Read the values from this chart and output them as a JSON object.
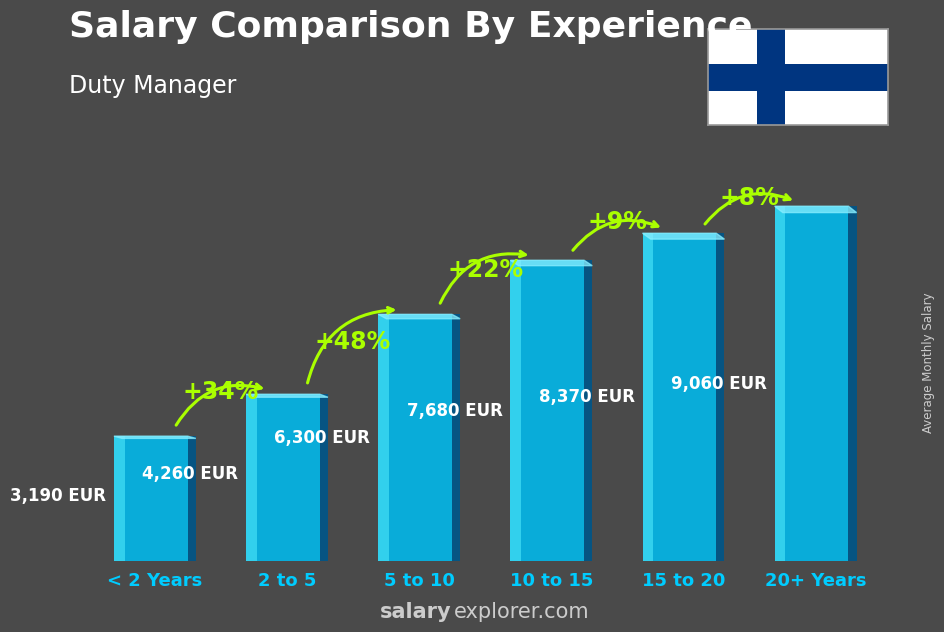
{
  "title": "Salary Comparison By Experience",
  "subtitle": "Duty Manager",
  "categories": [
    "< 2 Years",
    "2 to 5",
    "5 to 10",
    "10 to 15",
    "15 to 20",
    "20+ Years"
  ],
  "values": [
    3190,
    4260,
    6300,
    7680,
    8370,
    9060
  ],
  "value_labels": [
    "3,190 EUR",
    "4,260 EUR",
    "6,300 EUR",
    "7,680 EUR",
    "8,370 EUR",
    "9,060 EUR"
  ],
  "pct_labels": [
    "+34%",
    "+48%",
    "+22%",
    "+9%",
    "+8%"
  ],
  "bar_color_main": "#00bbee",
  "bar_color_highlight": "#55eeff",
  "bar_color_shadow": "#005588",
  "bar_color_top": "#88eeff",
  "background_color": "#4a4a4a",
  "title_color": "#ffffff",
  "subtitle_color": "#ffffff",
  "pct_color": "#aaff00",
  "arrow_color": "#aaff00",
  "xticklabel_color": "#00ccff",
  "value_label_color": "#ffffff",
  "footer_bold": "salary",
  "footer_normal": "explorer.com",
  "footer_color": "#cccccc",
  "side_label": "Average Monthly Salary",
  "side_label_color": "#cccccc",
  "ylim": [
    0,
    10800
  ],
  "title_fontsize": 26,
  "subtitle_fontsize": 17,
  "value_fontsize": 12,
  "pct_fontsize": 17,
  "xtick_fontsize": 13,
  "footer_fontsize": 15,
  "flag_color": "#003580",
  "flag_bg": "#ffffff"
}
